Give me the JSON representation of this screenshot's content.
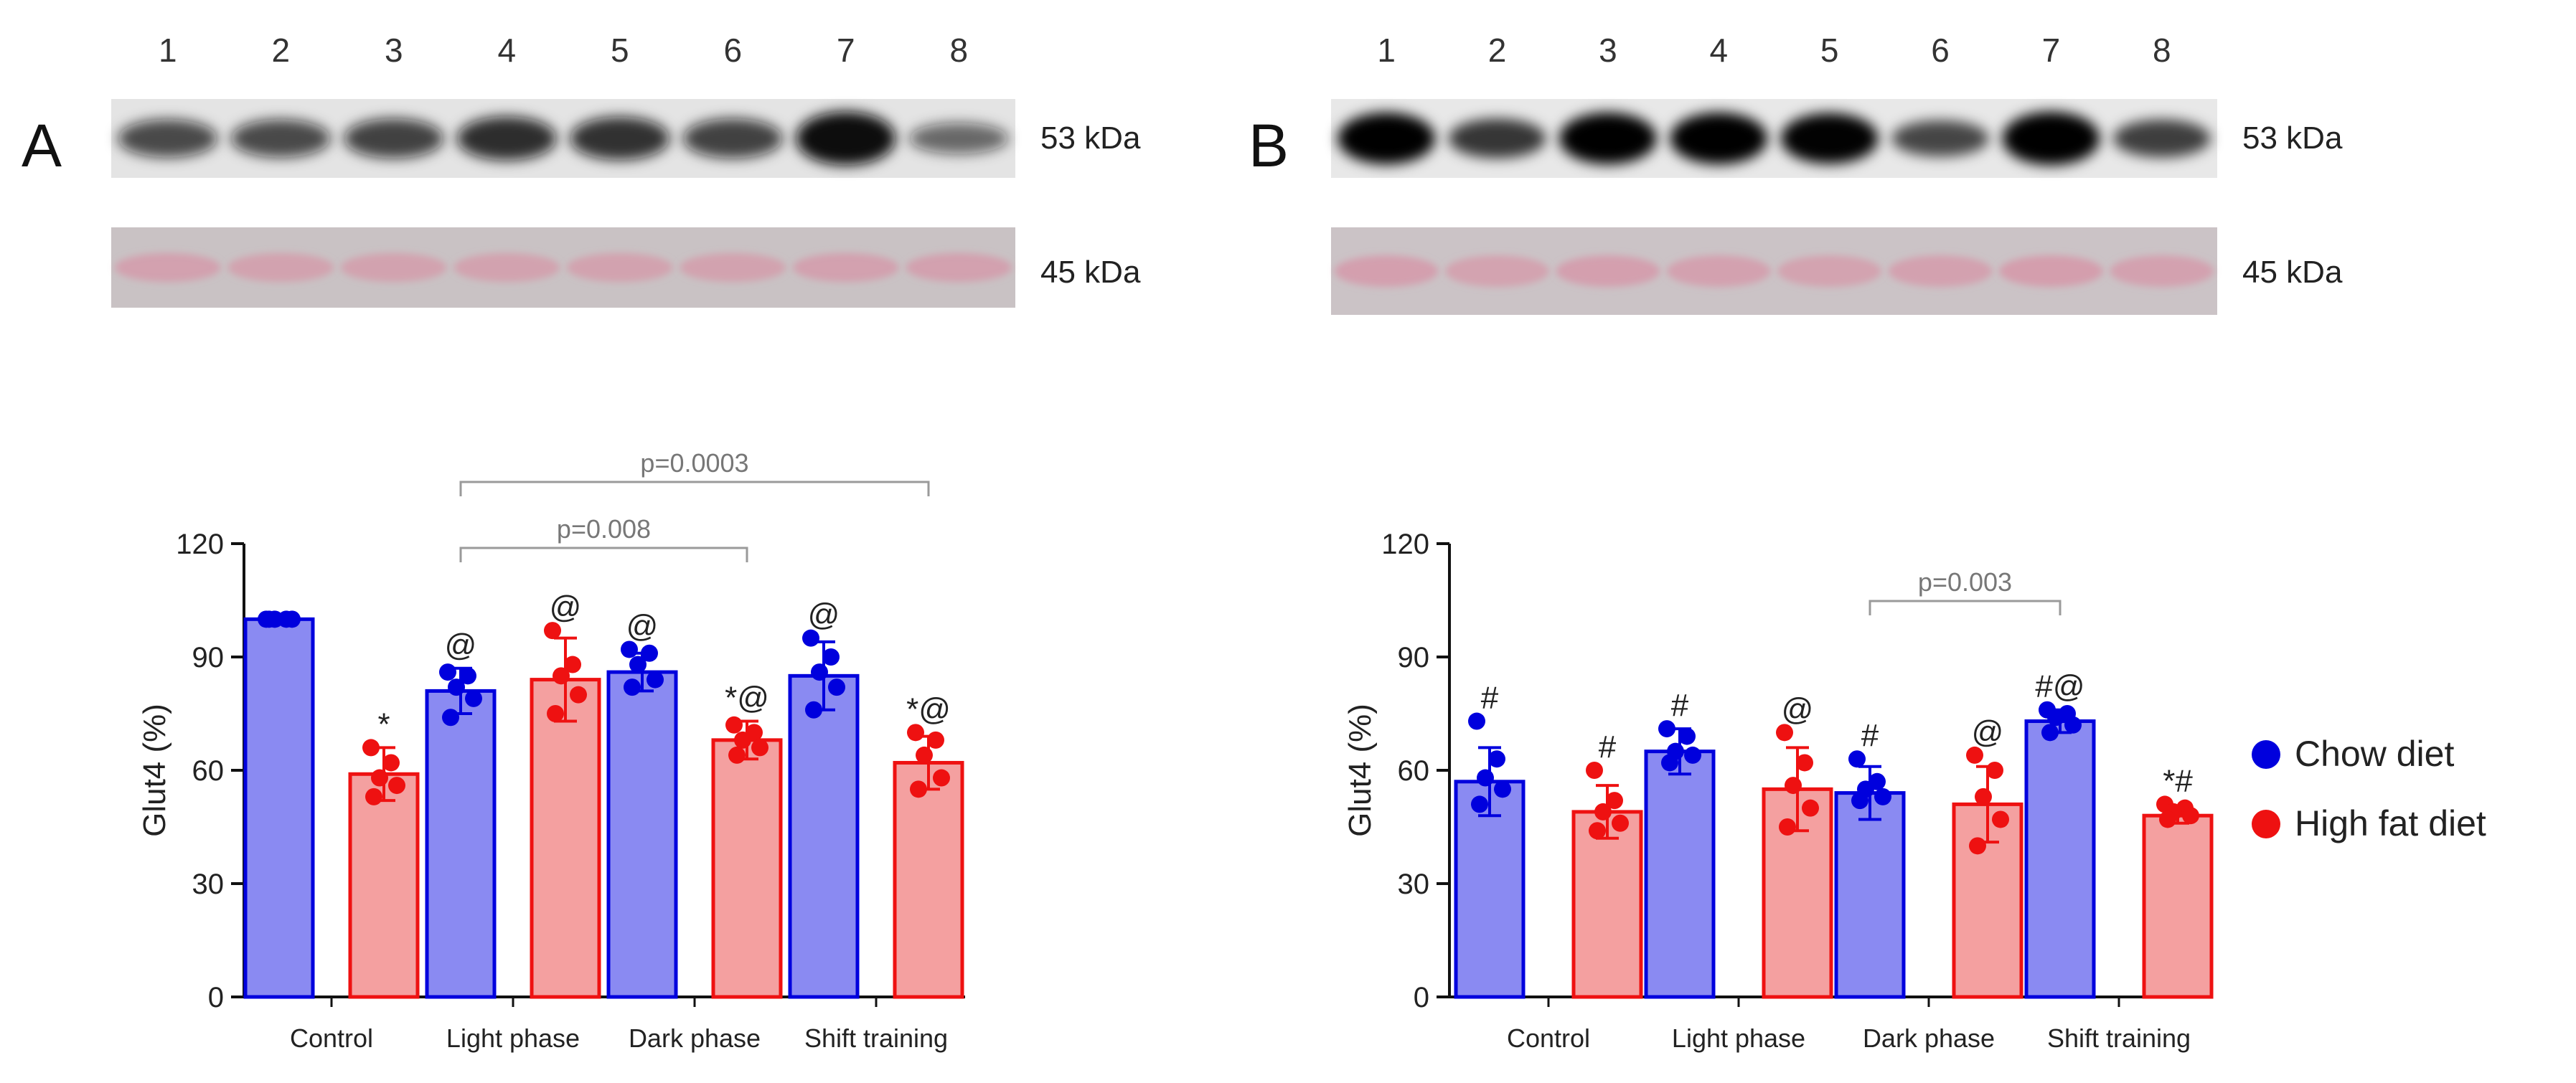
{
  "panels": [
    {
      "letter": "A",
      "lane_numbers": [
        "1",
        "2",
        "3",
        "4",
        "5",
        "6",
        "7",
        "8"
      ],
      "blot_top_label": "53 kDa",
      "blot_bottom_label": "45 kDa",
      "blot_top_intensity": [
        0.55,
        0.55,
        0.6,
        0.72,
        0.7,
        0.6,
        1.0,
        0.35
      ],
      "blot_bottom_intensity": [
        0.5,
        0.45,
        0.45,
        0.45,
        0.45,
        0.45,
        0.5,
        0.5
      ]
    },
    {
      "letter": "B",
      "lane_numbers": [
        "1",
        "2",
        "3",
        "4",
        "5",
        "6",
        "7",
        "8"
      ],
      "blot_top_label": "53 kDa",
      "blot_bottom_label": "45 kDa",
      "blot_top_intensity": [
        0.95,
        0.6,
        0.95,
        0.95,
        0.92,
        0.5,
        1.0,
        0.55
      ],
      "blot_bottom_intensity": [
        0.55,
        0.45,
        0.55,
        0.5,
        0.45,
        0.5,
        0.6,
        0.5
      ]
    }
  ],
  "colors": {
    "chow": "#0000dd",
    "chow_fill": "#8a8af2",
    "hfd": "#ee1111",
    "hfd_fill": "#f4a0a0",
    "axis": "#111111",
    "bracket": "#9a9a9a"
  },
  "legend": [
    {
      "name": "Chow diet",
      "color": "#0000dd"
    },
    {
      "name": "High fat diet",
      "color": "#ee1111"
    }
  ],
  "chart_data": [
    {
      "type": "bar",
      "panel": "A",
      "ylabel": "Glut4 (%)",
      "ylim": [
        0,
        120
      ],
      "yticks": [
        0,
        30,
        60,
        90,
        120
      ],
      "categories": [
        "Control",
        "Light phase",
        "Dark phase",
        "Shift training"
      ],
      "series": [
        {
          "name": "Chow diet",
          "values": [
            100,
            81,
            86,
            85
          ],
          "errors": [
            1,
            6,
            5,
            9
          ],
          "annotations": [
            "",
            "@",
            "@",
            "@"
          ],
          "points": [
            [
              100,
              100,
              100,
              100,
              100
            ],
            [
              86,
              85,
              82,
              79,
              74
            ],
            [
              92,
              91,
              88,
              84,
              82
            ],
            [
              95,
              90,
              86,
              82,
              76
            ]
          ]
        },
        {
          "name": "High fat diet",
          "values": [
            59,
            84,
            68,
            62
          ],
          "errors": [
            7,
            11,
            5,
            7
          ],
          "annotations": [
            "*",
            "@",
            "*@",
            "*@"
          ],
          "points": [
            [
              66,
              62,
              58,
              56,
              53
            ],
            [
              97,
              88,
              85,
              80,
              75
            ],
            [
              72,
              70,
              68,
              66,
              64
            ],
            [
              70,
              68,
              64,
              58,
              55
            ]
          ]
        }
      ],
      "brackets": [
        {
          "label": "p=0.008",
          "from": [
            1,
            0
          ],
          "to": [
            2,
            1
          ]
        },
        {
          "label": "p=0.0003",
          "from": [
            1,
            0
          ],
          "to": [
            3,
            1
          ]
        }
      ]
    },
    {
      "type": "bar",
      "panel": "B",
      "ylabel": "Glut4 (%)",
      "ylim": [
        0,
        120
      ],
      "yticks": [
        0,
        30,
        60,
        90,
        120
      ],
      "categories": [
        "Control",
        "Light phase",
        "Dark phase",
        "Shift training"
      ],
      "series": [
        {
          "name": "Chow diet",
          "values": [
            57,
            65,
            54,
            73
          ],
          "errors": [
            9,
            6,
            7,
            3
          ],
          "annotations": [
            "#",
            "#",
            "#",
            "#@"
          ],
          "points": [
            [
              73,
              63,
              58,
              55,
              51
            ],
            [
              71,
              69,
              65,
              64,
              62
            ],
            [
              63,
              57,
              55,
              53,
              52
            ],
            [
              76,
              75,
              74,
              72,
              70
            ]
          ]
        },
        {
          "name": "High fat diet",
          "values": [
            49,
            55,
            51,
            48
          ],
          "errors": [
            7,
            11,
            10,
            2
          ],
          "annotations": [
            "#",
            "@",
            "@",
            "*#"
          ],
          "points": [
            [
              60,
              52,
              49,
              46,
              44
            ],
            [
              70,
              62,
              56,
              50,
              45
            ],
            [
              64,
              60,
              53,
              47,
              40
            ],
            [
              51,
              50,
              49,
              48,
              47
            ]
          ]
        }
      ],
      "brackets": [
        {
          "label": "p=0.003",
          "from": [
            2,
            0
          ],
          "to": [
            3,
            0
          ]
        }
      ]
    }
  ]
}
